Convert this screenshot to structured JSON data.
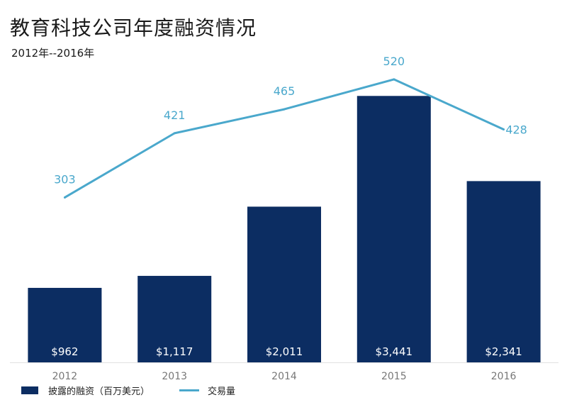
{
  "title": "教育科技公司年度融资情况",
  "subtitle": "2012年--2016年",
  "colors": {
    "bar": "#0c2d62",
    "line": "#4aa8cc",
    "axis_text": "#777777"
  },
  "chart_data": {
    "type": "bar",
    "categories": [
      "2012",
      "2013",
      "2014",
      "2015",
      "2016"
    ],
    "series": [
      {
        "name": "披露的融资（百万美元）",
        "kind": "bar",
        "values": [
          962,
          1117,
          2011,
          3441,
          2341
        ],
        "labels": [
          "$962",
          "$1,117",
          "$2,011",
          "$3,441",
          "$2,341"
        ]
      },
      {
        "name": "交易量",
        "kind": "line",
        "values": [
          303,
          421,
          465,
          520,
          428
        ],
        "labels": [
          "303",
          "421",
          "465",
          "520",
          "428"
        ]
      }
    ],
    "ylim_bar": [
      0,
      3700
    ],
    "ylim_line": [
      0,
      585
    ],
    "grid": false,
    "legend_position": "bottom-left"
  }
}
